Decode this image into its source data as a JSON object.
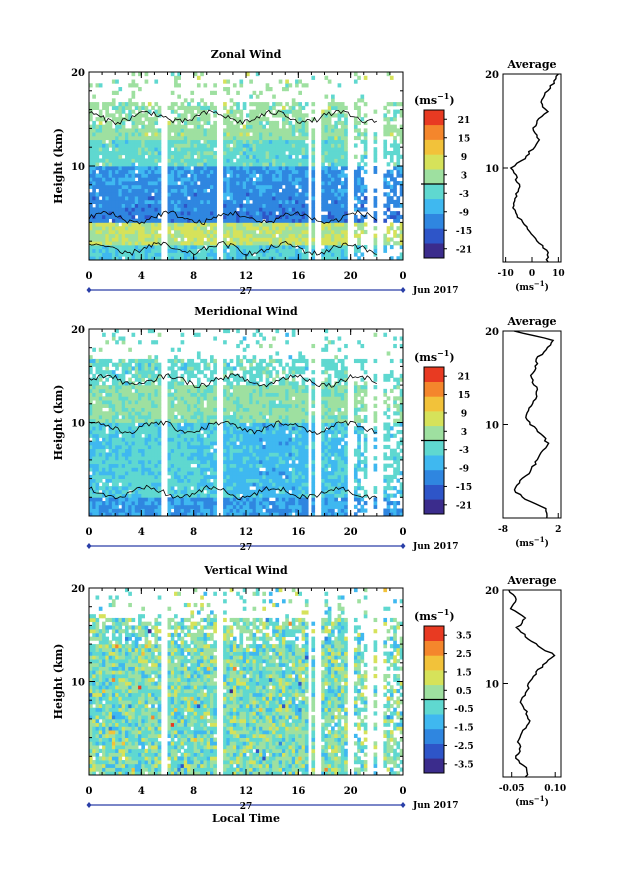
{
  "chart_data": [
    {
      "type": "heatmap",
      "title": "Zonal Wind",
      "ylabel": "Height (km)",
      "ylim": [
        0,
        20
      ],
      "yticks": [
        "10",
        "20"
      ],
      "xlim": [
        0,
        24
      ],
      "xticks": [
        "0",
        "4",
        "8",
        "12",
        "16",
        "20",
        "0"
      ],
      "date_day": "27",
      "date_month": "Jun 2017",
      "colorbar": {
        "unit": "(ms",
        "unit_exp": "−1",
        "unit_close": ")",
        "ticks": [
          "21",
          "15",
          "9",
          "3",
          "-3",
          "-9",
          "-15",
          "-21"
        ],
        "range": [
          -24,
          24
        ]
      },
      "average": {
        "title": "Average",
        "xticks": [
          "-10",
          "0",
          "10"
        ],
        "xlim": [
          -11,
          11
        ],
        "yticks": [
          "10",
          "20"
        ],
        "unit": "(ms",
        "unit_exp": "−1",
        "unit_close": ")",
        "profile_heights": [
          1,
          2,
          3,
          4,
          5,
          6,
          7,
          8,
          9,
          10,
          11,
          12,
          13,
          14,
          15,
          16,
          17,
          18,
          19,
          20
        ],
        "profile_values": [
          6,
          3,
          0,
          -3,
          -6,
          -7,
          -6,
          -5,
          -6,
          -8,
          -3,
          0,
          3,
          0,
          2,
          6,
          3,
          5,
          8,
          10
        ]
      },
      "gaps_hours": [
        5.8,
        10.0,
        16.9,
        17.5,
        20.0,
        21.5,
        22.2
      ]
    },
    {
      "type": "heatmap",
      "title": "Meridional Wind",
      "ylabel": "Height (km)",
      "ylim": [
        0,
        20
      ],
      "yticks": [
        "10",
        "20"
      ],
      "xlim": [
        0,
        24
      ],
      "xticks": [
        "0",
        "4",
        "8",
        "12",
        "16",
        "20",
        "0"
      ],
      "date_day": "27",
      "date_month": "Jun 2017",
      "colorbar": {
        "unit": "(ms",
        "unit_exp": "−1",
        "unit_close": ")",
        "ticks": [
          "21",
          "15",
          "9",
          "3",
          "-3",
          "-9",
          "-15",
          "-21"
        ],
        "range": [
          -24,
          24
        ]
      },
      "average": {
        "title": "Average",
        "xticks": [
          "-8",
          "2"
        ],
        "xlim": [
          -8,
          2.5
        ],
        "yticks": [
          "10",
          "20"
        ],
        "unit": "(ms",
        "unit_exp": "−1",
        "unit_close": ")",
        "profile_heights": [
          1,
          2,
          3,
          4,
          5,
          6,
          7,
          8,
          9,
          10,
          11,
          12,
          13,
          14,
          15,
          16,
          17,
          18,
          19,
          20
        ],
        "profile_values": [
          0,
          -4,
          -6,
          -5,
          -3,
          -2,
          -1,
          0,
          -1,
          -3,
          -4,
          -3,
          -2,
          -2,
          -3,
          -2,
          -2,
          0,
          1,
          -6
        ]
      },
      "gaps_hours": [
        5.8,
        10.0,
        16.9,
        17.5,
        20.0,
        21.5,
        22.2
      ]
    },
    {
      "type": "heatmap",
      "title": "Vertical Wind",
      "ylabel": "Height (km)",
      "xlabel": "Local Time",
      "ylim": [
        0,
        20
      ],
      "yticks": [
        "10",
        "20"
      ],
      "xlim": [
        0,
        24
      ],
      "xticks": [
        "0",
        "4",
        "8",
        "12",
        "16",
        "20",
        "0"
      ],
      "date_day": "27",
      "date_month": "Jun 2017",
      "colorbar": {
        "unit": "(ms",
        "unit_exp": "−1",
        "unit_close": ")",
        "ticks": [
          "3.5",
          "2.5",
          "1.5",
          "0.5",
          "-0.5",
          "-1.5",
          "-2.5",
          "-3.5"
        ],
        "range": [
          -4,
          4
        ]
      },
      "average": {
        "title": "Average",
        "xticks": [
          "-0.05",
          "0.10"
        ],
        "xlim": [
          -0.08,
          0.12
        ],
        "yticks": [
          "10",
          "20"
        ],
        "unit": "(ms",
        "unit_exp": "−1",
        "unit_close": ")",
        "profile_heights": [
          1,
          2,
          3,
          4,
          5,
          6,
          7,
          8,
          9,
          10,
          11,
          12,
          13,
          14,
          15,
          16,
          17,
          18,
          19,
          20
        ],
        "profile_values": [
          0.0,
          -0.04,
          -0.02,
          -0.03,
          -0.01,
          0.01,
          0.0,
          -0.02,
          0.0,
          0.01,
          0.03,
          0.06,
          0.1,
          0.04,
          0.0,
          -0.03,
          0.0,
          -0.05,
          -0.03,
          -0.06
        ]
      },
      "gaps_hours": [
        5.8,
        10.0,
        16.9,
        17.5,
        20.0,
        21.5,
        22.2
      ]
    }
  ],
  "colors": {
    "scale": [
      "#3b2c8c",
      "#2e55c8",
      "#2f86e0",
      "#3fb8f0",
      "#5fd8d0",
      "#9ee0a0",
      "#d6e25a",
      "#f2c23a",
      "#f4862c",
      "#e83a22"
    ],
    "outline": "#000000",
    "axis_marker": "#2a3fa8"
  }
}
